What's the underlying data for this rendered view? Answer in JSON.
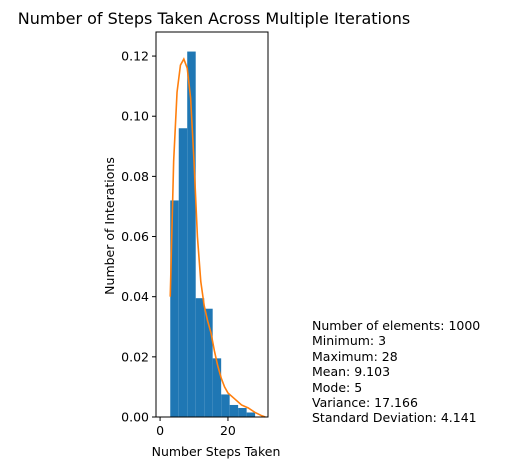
{
  "chart_data": {
    "type": "bar",
    "title": "Number of Steps Taken Across Multiple Iterations",
    "xlabel": "Number Steps Taken",
    "ylabel": "Number of Interations",
    "xlim": [
      -1.2,
      31.8
    ],
    "ylim": [
      0,
      0.128
    ],
    "x_ticks": [
      0,
      20
    ],
    "y_ticks": [
      0.0,
      0.02,
      0.04,
      0.06,
      0.08,
      0.1,
      0.12
    ],
    "y_tick_labels": [
      "0.00",
      "0.02",
      "0.04",
      "0.06",
      "0.08",
      "0.10",
      "0.12"
    ],
    "grid": false,
    "bar_color": "#1f77b4",
    "kde_color": "#ff7f0e",
    "histogram": {
      "bin_edges": [
        3.0,
        5.5,
        8.0,
        10.5,
        13.0,
        15.5,
        18.0,
        20.5,
        23.0,
        25.5,
        28.0
      ],
      "density": [
        0.072,
        0.096,
        0.1215,
        0.0395,
        0.036,
        0.0195,
        0.0075,
        0.004,
        0.003,
        0.0015
      ]
    },
    "kde": {
      "x": [
        3,
        4,
        5,
        6,
        7,
        8,
        9,
        10,
        11,
        12,
        13,
        14,
        15,
        16,
        17,
        18,
        19,
        20,
        22,
        24,
        26,
        28,
        30,
        31
      ],
      "y": [
        0.04,
        0.085,
        0.108,
        0.117,
        0.119,
        0.116,
        0.106,
        0.085,
        0.06,
        0.045,
        0.037,
        0.032,
        0.028,
        0.022,
        0.017,
        0.013,
        0.01,
        0.008,
        0.006,
        0.004,
        0.003,
        0.0015,
        0.0004,
        0.0
      ]
    }
  },
  "stats": [
    "Number of elements: 1000",
    "Minimum: 3",
    "Maximum: 28",
    "Mean: 9.103",
    "Mode: 5",
    "Variance: 17.166",
    "Standard Deviation: 4.141"
  ]
}
